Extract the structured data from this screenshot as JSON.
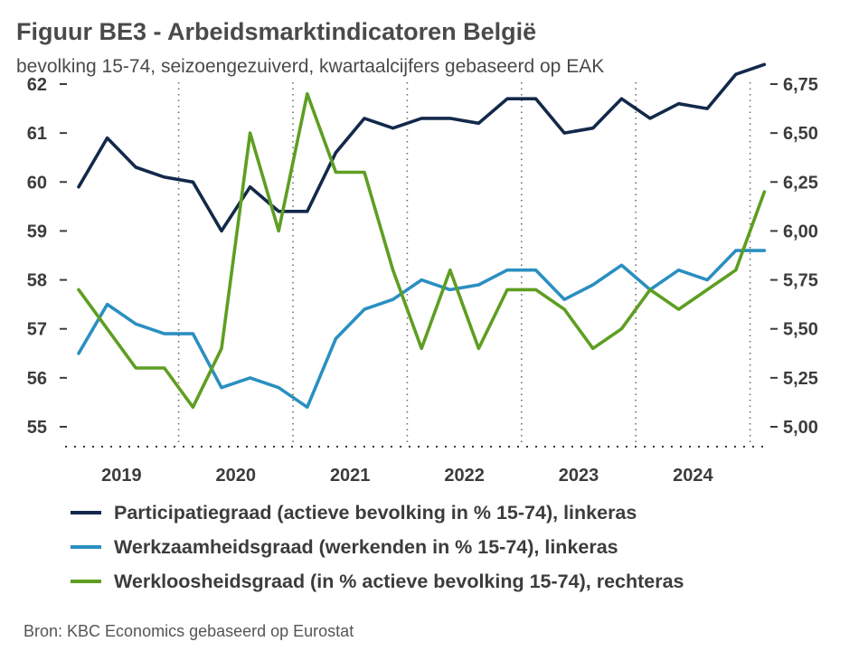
{
  "title": "Figuur BE3 - Arbeidsmarktindicatoren België",
  "subtitle": "bevolking 15-74, seizoengezuiverd, kwartaalcijfers gebaseerd op EAK",
  "source": "Bron: KBC Economics gebaseerd op Eurostat",
  "colors": {
    "participatie": "#13294b",
    "werkzaamheid": "#2a8fc1",
    "werkloosheid": "#5e9e22",
    "text": "#3c3c3c"
  },
  "chart_data": {
    "type": "line",
    "x": [
      "2019 Q1",
      "2019 Q2",
      "2019 Q3",
      "2019 Q4",
      "2020 Q1",
      "2020 Q2",
      "2020 Q3",
      "2020 Q4",
      "2021 Q1",
      "2021 Q2",
      "2021 Q3",
      "2021 Q4",
      "2022 Q1",
      "2022 Q2",
      "2022 Q3",
      "2022 Q4",
      "2023 Q1",
      "2023 Q2",
      "2023 Q3",
      "2023 Q4",
      "2024 Q1",
      "2024 Q2",
      "2024 Q3",
      "2024 Q4",
      "2025 Q1"
    ],
    "x_tick_labels": [
      "2019",
      "2020",
      "2021",
      "2022",
      "2023",
      "2024"
    ],
    "y_left": {
      "ylim": [
        55,
        62
      ],
      "ticks": [
        "55",
        "56",
        "57",
        "58",
        "59",
        "60",
        "61",
        "62"
      ]
    },
    "y_right": {
      "ylim": [
        5.0,
        6.75
      ],
      "ticks": [
        "5,00",
        "5,25",
        "5,50",
        "5,75",
        "6,00",
        "6,25",
        "6,50",
        "6,75"
      ]
    },
    "grid": {
      "vertical_dotted_at_year_boundaries": true
    },
    "legend_placement": "bottom",
    "series": [
      {
        "name": "Participatiegraad (actieve bevolking in % 15-74), linkeras",
        "axis": "left",
        "color_key": "participatie",
        "values": [
          59.9,
          60.9,
          60.3,
          60.1,
          60.0,
          59.0,
          59.9,
          59.4,
          59.4,
          60.6,
          61.3,
          61.1,
          61.3,
          61.3,
          61.2,
          61.7,
          61.7,
          61.0,
          61.1,
          61.7,
          61.3,
          61.6,
          61.5,
          62.2,
          62.4
        ]
      },
      {
        "name": "Werkzaamheidsgraad (werkenden in % 15-74), linkeras",
        "axis": "left",
        "color_key": "werkzaamheid",
        "values": [
          56.5,
          57.5,
          57.1,
          56.9,
          56.9,
          55.8,
          56.0,
          55.8,
          55.4,
          56.8,
          57.4,
          57.6,
          58.0,
          57.8,
          57.9,
          58.2,
          58.2,
          57.6,
          57.9,
          58.3,
          57.8,
          58.2,
          58.0,
          58.6,
          58.6
        ]
      },
      {
        "name": "Werkloosheidsgraad (in % actieve bevolking 15-74), rechteras",
        "axis": "right",
        "color_key": "werkloosheid",
        "values": [
          5.7,
          5.5,
          5.3,
          5.3,
          5.1,
          5.4,
          6.5,
          6.0,
          6.7,
          6.3,
          6.3,
          5.8,
          5.4,
          5.8,
          5.4,
          5.7,
          5.7,
          5.6,
          5.4,
          5.5,
          5.7,
          5.6,
          5.7,
          5.8,
          6.2
        ]
      }
    ]
  }
}
